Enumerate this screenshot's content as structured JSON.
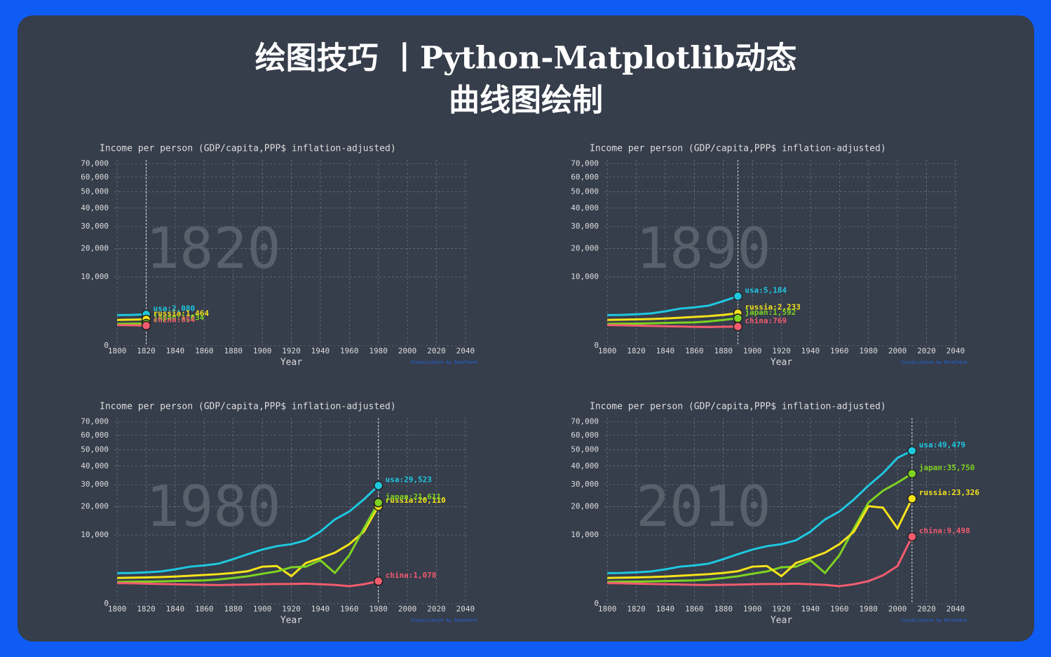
{
  "header": {
    "title_lines": [
      "绘图技巧 丨Python-Matplotlib动态",
      "曲线图绘制"
    ]
  },
  "chart_data": [
    {
      "type": "line",
      "title": "Income per person (GDP/capita,PPP$ inflation-adjusted)",
      "xlabel": "Year",
      "year": 1820,
      "credit": "Visualization by DataCharm",
      "yscale": "sqrt",
      "grid": true,
      "xlim": [
        1798,
        2042
      ],
      "ylim": [
        0,
        73000
      ],
      "xticks": [
        1800,
        1820,
        1840,
        1860,
        1880,
        1900,
        1920,
        1940,
        1960,
        1980,
        2000,
        2020,
        2040
      ],
      "yticks": [
        0,
        {
          "value": 10000,
          "label": "10,000"
        },
        {
          "value": 20000,
          "label": "20,000"
        },
        {
          "value": 30000,
          "label": "30,000"
        },
        {
          "value": 40000,
          "label": "40,000"
        },
        {
          "value": 50000,
          "label": "50,000"
        },
        {
          "value": 60000,
          "label": "60,000"
        },
        {
          "value": 70000,
          "label": "70,000"
        }
      ],
      "x": [
        1800,
        1810,
        1820
      ],
      "series": [
        {
          "name": "usa",
          "color": "#1ec8e0",
          "values": [
            1980,
            2000,
            2080
          ],
          "value_labels": [
            null,
            null,
            "usa:2,080"
          ]
        },
        {
          "name": "russia",
          "color": "#f5e31a",
          "values": [
            1400,
            1430,
            1464
          ],
          "value_labels": [
            null,
            null,
            "russia:1,464"
          ]
        },
        {
          "name": "japan",
          "color": "#7ed321",
          "values": [
            1000,
            1020,
            1034
          ],
          "value_labels": [
            null,
            null,
            "japan:1,034"
          ]
        },
        {
          "name": "china",
          "color": "#f25c6e",
          "values": [
            900,
            880,
            854
          ],
          "value_labels": [
            null,
            null,
            "china:854"
          ]
        }
      ]
    },
    {
      "type": "line",
      "title": "Income per person (GDP/capita,PPP$ inflation-adjusted)",
      "xlabel": "Year",
      "year": 1890,
      "credit": "Visualization by DataCharm",
      "yscale": "sqrt",
      "grid": true,
      "xlim": [
        1798,
        2042
      ],
      "ylim": [
        0,
        73000
      ],
      "xticks": [
        1800,
        1820,
        1840,
        1860,
        1880,
        1900,
        1920,
        1940,
        1960,
        1980,
        2000,
        2020,
        2040
      ],
      "yticks": [
        0,
        {
          "value": 10000,
          "label": "10,000"
        },
        {
          "value": 20000,
          "label": "20,000"
        },
        {
          "value": 30000,
          "label": "30,000"
        },
        {
          "value": 40000,
          "label": "40,000"
        },
        {
          "value": 50000,
          "label": "50,000"
        },
        {
          "value": 60000,
          "label": "60,000"
        },
        {
          "value": 70000,
          "label": "70,000"
        }
      ],
      "x": [
        1800,
        1810,
        1820,
        1830,
        1840,
        1850,
        1860,
        1870,
        1880,
        1890
      ],
      "series": [
        {
          "name": "usa",
          "color": "#1ec8e0",
          "values": [
            1980,
            2000,
            2080,
            2200,
            2500,
            2900,
            3100,
            3400,
            4200,
            5184
          ],
          "value_labels": [
            null,
            null,
            null,
            null,
            null,
            null,
            null,
            null,
            null,
            "usa:5,184"
          ]
        },
        {
          "name": "russia",
          "color": "#f5e31a",
          "values": [
            1400,
            1430,
            1464,
            1500,
            1560,
            1650,
            1750,
            1850,
            2000,
            2233
          ],
          "value_labels": [
            null,
            null,
            null,
            null,
            null,
            null,
            null,
            null,
            null,
            "russia:2,233"
          ]
        },
        {
          "name": "japan",
          "color": "#7ed321",
          "values": [
            1000,
            1020,
            1034,
            1060,
            1090,
            1120,
            1150,
            1250,
            1400,
            1592
          ],
          "value_labels": [
            null,
            null,
            null,
            null,
            null,
            null,
            null,
            null,
            null,
            "japan:1,592"
          ]
        },
        {
          "name": "china",
          "color": "#f25c6e",
          "values": [
            900,
            880,
            854,
            820,
            800,
            780,
            750,
            740,
            760,
            769
          ],
          "value_labels": [
            null,
            null,
            null,
            null,
            null,
            null,
            null,
            null,
            null,
            "china:769"
          ]
        }
      ]
    },
    {
      "type": "line",
      "title": "Income per person (GDP/capita,PPP$ inflation-adjusted)",
      "xlabel": "Year",
      "year": 1980,
      "credit": "Visualization by DataCharm",
      "yscale": "sqrt",
      "grid": true,
      "xlim": [
        1798,
        2042
      ],
      "ylim": [
        0,
        73000
      ],
      "xticks": [
        1800,
        1820,
        1840,
        1860,
        1880,
        1900,
        1920,
        1940,
        1960,
        1980,
        2000,
        2020,
        2040
      ],
      "yticks": [
        0,
        {
          "value": 10000,
          "label": "10,000"
        },
        {
          "value": 20000,
          "label": "20,000"
        },
        {
          "value": 30000,
          "label": "30,000"
        },
        {
          "value": 40000,
          "label": "40,000"
        },
        {
          "value": 50000,
          "label": "50,000"
        },
        {
          "value": 60000,
          "label": "60,000"
        },
        {
          "value": 70000,
          "label": "70,000"
        }
      ],
      "x": [
        1800,
        1810,
        1820,
        1830,
        1840,
        1850,
        1860,
        1870,
        1880,
        1890,
        1900,
        1910,
        1920,
        1930,
        1940,
        1950,
        1960,
        1970,
        1980
      ],
      "series": [
        {
          "name": "usa",
          "color": "#1ec8e0",
          "values": [
            1980,
            2000,
            2080,
            2200,
            2500,
            2900,
            3100,
            3400,
            4200,
            5184,
            6200,
            7000,
            7500,
            8500,
            11000,
            15000,
            18000,
            23000,
            29523
          ],
          "value_labels": [
            null,
            null,
            null,
            null,
            null,
            null,
            null,
            null,
            null,
            null,
            null,
            null,
            null,
            null,
            null,
            null,
            null,
            null,
            "usa:29,523"
          ]
        },
        {
          "name": "russia",
          "color": "#f5e31a",
          "values": [
            1400,
            1430,
            1464,
            1500,
            1560,
            1650,
            1750,
            1850,
            2000,
            2233,
            2900,
            3000,
            1600,
            3500,
            4400,
            5500,
            7500,
            11000,
            20110
          ],
          "value_labels": [
            null,
            null,
            null,
            null,
            null,
            null,
            null,
            null,
            null,
            null,
            null,
            null,
            null,
            null,
            null,
            null,
            null,
            null,
            "russia:20,110"
          ]
        },
        {
          "name": "japan",
          "color": "#7ed321",
          "values": [
            1000,
            1020,
            1034,
            1060,
            1090,
            1120,
            1150,
            1250,
            1400,
            1592,
            1900,
            2200,
            2800,
            2900,
            4000,
            2000,
            5000,
            12000,
            21611
          ],
          "value_labels": [
            null,
            null,
            null,
            null,
            null,
            null,
            null,
            null,
            null,
            null,
            null,
            null,
            null,
            null,
            null,
            null,
            null,
            null,
            "japan:21,611"
          ]
        },
        {
          "name": "china",
          "color": "#f25c6e",
          "values": [
            900,
            880,
            854,
            820,
            800,
            780,
            750,
            740,
            760,
            769,
            800,
            820,
            820,
            850,
            800,
            750,
            650,
            800,
            1078
          ],
          "value_labels": [
            null,
            null,
            null,
            null,
            null,
            null,
            null,
            null,
            null,
            null,
            null,
            null,
            null,
            null,
            null,
            null,
            null,
            null,
            "china:1,078"
          ]
        }
      ]
    },
    {
      "type": "line",
      "title": "Income per person (GDP/capita,PPP$ inflation-adjusted)",
      "xlabel": "Year",
      "year": 2010,
      "credit": "Visualization by DataCharm",
      "yscale": "sqrt",
      "grid": true,
      "xlim": [
        1798,
        2042
      ],
      "ylim": [
        0,
        73000
      ],
      "xticks": [
        1800,
        1820,
        1840,
        1860,
        1880,
        1900,
        1920,
        1940,
        1960,
        1980,
        2000,
        2020,
        2040
      ],
      "yticks": [
        0,
        {
          "value": 10000,
          "label": "10,000"
        },
        {
          "value": 20000,
          "label": "20,000"
        },
        {
          "value": 30000,
          "label": "30,000"
        },
        {
          "value": 40000,
          "label": "40,000"
        },
        {
          "value": 50000,
          "label": "50,000"
        },
        {
          "value": 60000,
          "label": "60,000"
        },
        {
          "value": 70000,
          "label": "70,000"
        }
      ],
      "x": [
        1800,
        1810,
        1820,
        1830,
        1840,
        1850,
        1860,
        1870,
        1880,
        1890,
        1900,
        1910,
        1920,
        1930,
        1940,
        1950,
        1960,
        1970,
        1980,
        1990,
        2000,
        2010
      ],
      "series": [
        {
          "name": "usa",
          "color": "#1ec8e0",
          "values": [
            1980,
            2000,
            2080,
            2200,
            2500,
            2900,
            3100,
            3400,
            4200,
            5184,
            6200,
            7000,
            7500,
            8500,
            11000,
            15000,
            18000,
            23000,
            29523,
            36000,
            45000,
            49479
          ],
          "value_labels": [
            null,
            null,
            null,
            null,
            null,
            null,
            null,
            null,
            null,
            null,
            null,
            null,
            null,
            null,
            null,
            null,
            null,
            null,
            null,
            null,
            null,
            "usa:49,479"
          ]
        },
        {
          "name": "japan",
          "color": "#7ed321",
          "values": [
            1000,
            1020,
            1034,
            1060,
            1090,
            1120,
            1150,
            1250,
            1400,
            1592,
            1900,
            2200,
            2800,
            2900,
            4000,
            2000,
            5000,
            12000,
            21611,
            27000,
            31000,
            35750
          ],
          "value_labels": [
            null,
            null,
            null,
            null,
            null,
            null,
            null,
            null,
            null,
            null,
            null,
            null,
            null,
            null,
            null,
            null,
            null,
            null,
            null,
            null,
            null,
            "japan:35,750"
          ]
        },
        {
          "name": "russia",
          "color": "#f5e31a",
          "values": [
            1400,
            1430,
            1464,
            1500,
            1560,
            1650,
            1750,
            1850,
            2000,
            2233,
            2900,
            3000,
            1600,
            3500,
            4400,
            5500,
            7500,
            11000,
            20110,
            19500,
            12000,
            23326
          ],
          "value_labels": [
            null,
            null,
            null,
            null,
            null,
            null,
            null,
            null,
            null,
            null,
            null,
            null,
            null,
            null,
            null,
            null,
            null,
            null,
            null,
            null,
            null,
            "russia:23,326"
          ]
        },
        {
          "name": "china",
          "color": "#f25c6e",
          "values": [
            900,
            880,
            854,
            820,
            800,
            780,
            750,
            740,
            760,
            769,
            800,
            820,
            820,
            850,
            800,
            750,
            650,
            800,
            1078,
            1700,
            3000,
            9498
          ],
          "value_labels": [
            null,
            null,
            null,
            null,
            null,
            null,
            null,
            null,
            null,
            null,
            null,
            null,
            null,
            null,
            null,
            null,
            null,
            null,
            null,
            null,
            null,
            "china:9,498"
          ]
        }
      ]
    }
  ]
}
